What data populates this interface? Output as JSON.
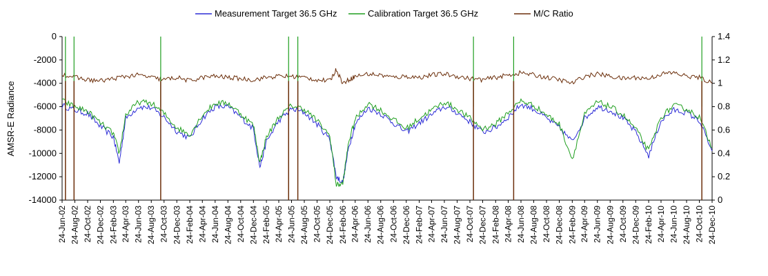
{
  "chart_data": {
    "type": "line",
    "title": "",
    "ylabel": "AMSR-E Radiance",
    "ylim": [
      -14000,
      0
    ],
    "y_ticks": [
      "0",
      "-2000",
      "-4000",
      "-6000",
      "-8000",
      "-10000",
      "-12000",
      "-14000"
    ],
    "y2lim": [
      0,
      1.4
    ],
    "y2_ticks": [
      "1.4",
      "1.2",
      "1",
      "0.8",
      "0.6",
      "0.4",
      "0.2",
      "0"
    ],
    "legend_position": "top",
    "grid": false,
    "x_tick_labels": [
      "24-Jun-02",
      "24-Aug-02",
      "24-Oct-02",
      "24-Dec-02",
      "24-Feb-03",
      "24-Apr-03",
      "24-Jun-03",
      "24-Aug-03",
      "24-Oct-03",
      "24-Dec-03",
      "24-Feb-04",
      "24-Apr-04",
      "24-Jun-04",
      "24-Aug-04",
      "24-Oct-04",
      "24-Dec-04",
      "24-Feb-05",
      "24-Apr-05",
      "24-Jun-05",
      "24-Aug-05",
      "24-Oct-05",
      "24-Dec-05",
      "24-Feb-06",
      "24-Apr-06",
      "24-Jun-06",
      "24-Aug-06",
      "24-Oct-06",
      "24-Dec-06",
      "24-Feb-07",
      "24-Apr-07",
      "24-Jun-07",
      "24-Aug-07",
      "24-Oct-07",
      "24-Dec-07",
      "24-Feb-08",
      "24-Apr-08",
      "24-Jun-08",
      "24-Aug-08",
      "24-Oct-08",
      "24-Dec-08",
      "24-Feb-09",
      "24-Apr-09",
      "24-Jun-09",
      "24-Aug-09",
      "24-Oct-09",
      "24-Dec-09",
      "24-Feb-10",
      "24-Apr-10",
      "24-Jun-10",
      "24-Aug-10",
      "24-Oct-10",
      "24-Dec-10"
    ],
    "series": [
      {
        "name": "Measurement Target 36.5 GHz",
        "axis": "left",
        "color": "#2b2bd6",
        "points": [
          [
            "24-Jun-02",
            -5900
          ],
          [
            "24-Aug-02",
            -6300
          ],
          [
            "24-Oct-02",
            -6600
          ],
          [
            "24-Dec-02",
            -7700
          ],
          [
            "24-Feb-03",
            -8600
          ],
          [
            "24-Mar-03",
            -10800
          ],
          [
            "24-Apr-03",
            -7000
          ],
          [
            "24-Jun-03",
            -6000
          ],
          [
            "24-Aug-03",
            -6100
          ],
          [
            "24-Oct-03",
            -6900
          ],
          [
            "24-Dec-03",
            -8100
          ],
          [
            "24-Feb-04",
            -8700
          ],
          [
            "24-Apr-04",
            -7000
          ],
          [
            "24-Jun-04",
            -6000
          ],
          [
            "24-Aug-04",
            -6000
          ],
          [
            "24-Oct-04",
            -6900
          ],
          [
            "24-Dec-04",
            -7900
          ],
          [
            "24-Jan-05",
            -11200
          ],
          [
            "24-Feb-05",
            -9000
          ],
          [
            "24-Apr-05",
            -7200
          ],
          [
            "24-Jun-05",
            -6200
          ],
          [
            "24-Aug-05",
            -6500
          ],
          [
            "24-Oct-05",
            -7500
          ],
          [
            "24-Dec-05",
            -8800
          ],
          [
            "24-Jan-06",
            -12000
          ],
          [
            "24-Feb-06",
            -12500
          ],
          [
            "24-Mar-06",
            -9500
          ],
          [
            "24-Apr-06",
            -7500
          ],
          [
            "24-Jun-06",
            -6100
          ],
          [
            "24-Aug-06",
            -6600
          ],
          [
            "24-Oct-06",
            -7400
          ],
          [
            "24-Dec-06",
            -8200
          ],
          [
            "24-Feb-07",
            -7400
          ],
          [
            "24-Apr-07",
            -6700
          ],
          [
            "24-Jun-07",
            -6000
          ],
          [
            "24-Aug-07",
            -6500
          ],
          [
            "24-Oct-07",
            -7300
          ],
          [
            "24-Dec-07",
            -8200
          ],
          [
            "24-Feb-08",
            -7800
          ],
          [
            "24-Apr-08",
            -6900
          ],
          [
            "24-Jun-08",
            -5800
          ],
          [
            "24-Aug-08",
            -6200
          ],
          [
            "24-Oct-08",
            -7000
          ],
          [
            "24-Dec-08",
            -7800
          ],
          [
            "24-Feb-09",
            -9000
          ],
          [
            "24-Apr-09",
            -7000
          ],
          [
            "24-Jun-09",
            -6000
          ],
          [
            "24-Aug-09",
            -6300
          ],
          [
            "24-Oct-09",
            -7000
          ],
          [
            "24-Dec-09",
            -8200
          ],
          [
            "24-Feb-10",
            -10200
          ],
          [
            "24-Apr-10",
            -7200
          ],
          [
            "24-Jun-10",
            -6300
          ],
          [
            "24-Aug-10",
            -6500
          ],
          [
            "24-Oct-10",
            -7200
          ],
          [
            "24-Dec-10",
            -9800
          ]
        ]
      },
      {
        "name": "Calibration Target 36.5 GHz",
        "axis": "left",
        "color": "#1e9e1e",
        "points": [
          [
            "24-Jun-02",
            -5500
          ],
          [
            "24-Aug-02",
            -6000
          ],
          [
            "24-Oct-02",
            -6400
          ],
          [
            "24-Dec-02",
            -7400
          ],
          [
            "24-Feb-03",
            -8300
          ],
          [
            "24-Mar-03",
            -10000
          ],
          [
            "24-Apr-03",
            -6700
          ],
          [
            "24-Jun-03",
            -5600
          ],
          [
            "24-Aug-03",
            -5700
          ],
          [
            "24-Oct-03",
            -6600
          ],
          [
            "24-Dec-03",
            -7800
          ],
          [
            "24-Feb-04",
            -8400
          ],
          [
            "24-Apr-04",
            -6700
          ],
          [
            "24-Jun-04",
            -5700
          ],
          [
            "24-Aug-04",
            -5700
          ],
          [
            "24-Oct-04",
            -6600
          ],
          [
            "24-Dec-04",
            -7600
          ],
          [
            "24-Jan-05",
            -10800
          ],
          [
            "24-Feb-05",
            -8600
          ],
          [
            "24-Apr-05",
            -6900
          ],
          [
            "24-Jun-05",
            -5900
          ],
          [
            "24-Aug-05",
            -6200
          ],
          [
            "24-Oct-05",
            -7200
          ],
          [
            "24-Dec-05",
            -8500
          ],
          [
            "24-Jan-06",
            -12700
          ],
          [
            "24-Feb-06",
            -12600
          ],
          [
            "24-Mar-06",
            -9000
          ],
          [
            "24-Apr-06",
            -7100
          ],
          [
            "24-Jun-06",
            -5700
          ],
          [
            "24-Aug-06",
            -6300
          ],
          [
            "24-Oct-06",
            -7100
          ],
          [
            "24-Dec-06",
            -7900
          ],
          [
            "24-Feb-07",
            -7000
          ],
          [
            "24-Apr-07",
            -6300
          ],
          [
            "24-Jun-07",
            -5600
          ],
          [
            "24-Aug-07",
            -6200
          ],
          [
            "24-Oct-07",
            -7000
          ],
          [
            "24-Dec-07",
            -7900
          ],
          [
            "24-Feb-08",
            -7500
          ],
          [
            "24-Apr-08",
            -6500
          ],
          [
            "24-Jun-08",
            -5500
          ],
          [
            "24-Aug-08",
            -5900
          ],
          [
            "24-Oct-08",
            -6700
          ],
          [
            "24-Dec-08",
            -7500
          ],
          [
            "24-Feb-09",
            -10500
          ],
          [
            "24-Apr-09",
            -6700
          ],
          [
            "24-Jun-09",
            -5600
          ],
          [
            "24-Aug-09",
            -6000
          ],
          [
            "24-Oct-09",
            -6700
          ],
          [
            "24-Dec-09",
            -7900
          ],
          [
            "24-Feb-10",
            -9800
          ],
          [
            "24-Apr-10",
            -6900
          ],
          [
            "24-Jun-10",
            -5900
          ],
          [
            "24-Aug-10",
            -6200
          ],
          [
            "24-Oct-10",
            -6900
          ],
          [
            "24-Dec-10",
            -9500
          ]
        ],
        "spikes_to_top": [
          "10-Jul-02",
          "20-Aug-02",
          "8-Oct-03",
          "10-Jun-05",
          "24-Jul-05",
          "10-Nov-07",
          "20-May-08",
          "5-Nov-10"
        ]
      },
      {
        "name": "M/C Ratio",
        "axis": "right",
        "color": "#6b2e0a",
        "points": [
          [
            "24-Jun-02",
            1.08
          ],
          [
            "24-Aug-02",
            1.05
          ],
          [
            "24-Oct-02",
            1.03
          ],
          [
            "24-Dec-02",
            1.02
          ],
          [
            "24-Feb-03",
            1.04
          ],
          [
            "24-Apr-03",
            1.06
          ],
          [
            "24-Jun-03",
            1.07
          ],
          [
            "24-Aug-03",
            1.05
          ],
          [
            "24-Oct-03",
            1.03
          ],
          [
            "24-Dec-03",
            1.05
          ],
          [
            "24-Feb-04",
            1.02
          ],
          [
            "24-Apr-04",
            1.05
          ],
          [
            "24-Jun-04",
            1.06
          ],
          [
            "24-Aug-04",
            1.05
          ],
          [
            "24-Oct-04",
            1.04
          ],
          [
            "24-Dec-04",
            1.03
          ],
          [
            "24-Feb-05",
            1.05
          ],
          [
            "24-Apr-05",
            1.06
          ],
          [
            "24-Jun-05",
            1.06
          ],
          [
            "24-Aug-05",
            1.05
          ],
          [
            "24-Oct-05",
            1.03
          ],
          [
            "24-Dec-05",
            1.02
          ],
          [
            "24-Jan-06",
            1.12
          ],
          [
            "24-Feb-06",
            1.0
          ],
          [
            "24-Mar-06",
            1.03
          ],
          [
            "24-Apr-06",
            1.06
          ],
          [
            "24-Jun-06",
            1.08
          ],
          [
            "24-Aug-06",
            1.07
          ],
          [
            "24-Oct-06",
            1.05
          ],
          [
            "24-Dec-06",
            1.06
          ],
          [
            "24-Feb-07",
            1.05
          ],
          [
            "24-Apr-07",
            1.07
          ],
          [
            "24-Jun-07",
            1.08
          ],
          [
            "24-Aug-07",
            1.06
          ],
          [
            "24-Oct-07",
            1.04
          ],
          [
            "24-Dec-07",
            1.03
          ],
          [
            "24-Feb-08",
            1.05
          ],
          [
            "24-Apr-08",
            1.07
          ],
          [
            "24-Jun-08",
            1.09
          ],
          [
            "24-Aug-08",
            1.07
          ],
          [
            "24-Oct-08",
            1.05
          ],
          [
            "24-Dec-08",
            1.03
          ],
          [
            "24-Feb-09",
            1.0
          ],
          [
            "24-Apr-09",
            1.06
          ],
          [
            "24-Jun-09",
            1.08
          ],
          [
            "24-Aug-09",
            1.06
          ],
          [
            "24-Oct-09",
            1.04
          ],
          [
            "24-Dec-09",
            1.05
          ],
          [
            "24-Feb-10",
            1.04
          ],
          [
            "24-Apr-10",
            1.08
          ],
          [
            "24-Jun-10",
            1.09
          ],
          [
            "24-Aug-10",
            1.06
          ],
          [
            "24-Oct-10",
            1.05
          ],
          [
            "24-Dec-10",
            1.0
          ]
        ],
        "spikes_to_bottom": [
          "10-Jul-02",
          "20-Aug-02",
          "8-Oct-03",
          "10-Jun-05",
          "24-Jul-05",
          "10-Nov-07",
          "20-May-08",
          "5-Nov-10"
        ]
      }
    ]
  }
}
